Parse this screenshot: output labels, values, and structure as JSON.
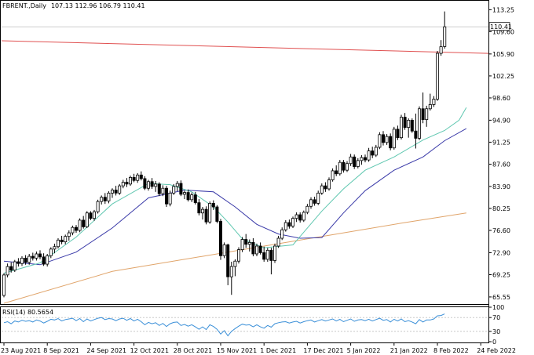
{
  "header": {
    "symbol_label": "FBRENT.,Daily",
    "ohlc_label": "107.13 112.96 106.79 110.41"
  },
  "rsi_panel": {
    "label": "RSI(14) 80.5654",
    "levels": [
      "100",
      "70",
      "30",
      "0"
    ]
  },
  "price_axis": {
    "ticks": [
      "113.25",
      "109.60",
      "105.90",
      "102.25",
      "98.60",
      "94.90",
      "91.25",
      "87.60",
      "83.90",
      "80.25",
      "76.60",
      "72.90",
      "69.25",
      "65.55"
    ],
    "current_price_label": "110.41"
  },
  "date_axis": {
    "ticks": [
      "23 Aug 2021",
      "8 Sep 2021",
      "24 Sep 2021",
      "12 Oct 2021",
      "28 Oct 2021",
      "15 Nov 2021",
      "1 Dec 2021",
      "17 Dec 2021",
      "5 Jan 2022",
      "21 Jan 2022",
      "8 Feb 2022",
      "24 Feb 2022"
    ]
  },
  "colors": {
    "bull_candle": "#ffffff",
    "bear_candle": "#000000",
    "ma_fast": "#5fc7b0",
    "ma_mid": "#3a3aa8",
    "ma_slow": "#e0a46a",
    "trendline": "#e05050",
    "rsi_line": "#3a8fd8"
  },
  "chart_data": {
    "type": "candlestick",
    "title": "FBRENT.,Daily",
    "ylim": [
      64.5,
      114.6
    ],
    "x_tick_labels": [
      "23 Aug 2021",
      "8 Sep 2021",
      "24 Sep 2021",
      "12 Oct 2021",
      "28 Oct 2021",
      "15 Nov 2021",
      "1 Dec 2021",
      "17 Dec 2021",
      "5 Jan 2022",
      "21 Jan 2022",
      "8 Feb 2022",
      "24 Feb 2022"
    ],
    "x_tick_bar_index": [
      0,
      12,
      24,
      36,
      48,
      60,
      72,
      84,
      96,
      108,
      120,
      132
    ],
    "candles": [
      [
        65.8,
        69.5,
        65.5,
        69.2
      ],
      [
        69.2,
        71.1,
        68.8,
        70.6
      ],
      [
        70.6,
        71.3,
        69.6,
        70.0
      ],
      [
        70.0,
        71.7,
        69.7,
        71.4
      ],
      [
        71.4,
        72.0,
        70.6,
        71.1
      ],
      [
        71.1,
        72.3,
        70.7,
        72.0
      ],
      [
        72.0,
        72.5,
        70.9,
        71.3
      ],
      [
        71.3,
        72.7,
        70.9,
        72.3
      ],
      [
        72.3,
        72.9,
        71.6,
        72.0
      ],
      [
        72.0,
        73.1,
        71.6,
        72.7
      ],
      [
        72.7,
        73.3,
        71.8,
        72.2
      ],
      [
        72.2,
        72.8,
        70.7,
        71.0
      ],
      [
        71.0,
        72.7,
        70.6,
        72.4
      ],
      [
        72.4,
        73.8,
        72.0,
        73.5
      ],
      [
        73.5,
        74.4,
        72.8,
        73.9
      ],
      [
        73.9,
        75.3,
        73.6,
        75.0
      ],
      [
        75.0,
        75.7,
        74.3,
        74.7
      ],
      [
        74.7,
        75.9,
        74.3,
        75.6
      ],
      [
        75.6,
        76.6,
        74.9,
        76.2
      ],
      [
        76.2,
        77.4,
        75.8,
        77.1
      ],
      [
        77.1,
        77.5,
        76.2,
        76.6
      ],
      [
        76.6,
        78.6,
        76.3,
        78.3
      ],
      [
        78.3,
        79.0,
        76.9,
        77.2
      ],
      [
        77.2,
        79.8,
        77.0,
        79.5
      ],
      [
        79.5,
        79.8,
        78.3,
        78.6
      ],
      [
        78.6,
        80.0,
        78.2,
        79.7
      ],
      [
        79.7,
        81.7,
        79.4,
        81.4
      ],
      [
        81.4,
        82.4,
        80.9,
        82.1
      ],
      [
        82.1,
        82.8,
        81.0,
        81.5
      ],
      [
        81.5,
        83.1,
        81.1,
        82.8
      ],
      [
        82.8,
        83.6,
        82.0,
        83.3
      ],
      [
        83.3,
        84.0,
        82.4,
        82.8
      ],
      [
        82.8,
        84.3,
        82.5,
        84.0
      ],
      [
        84.0,
        85.0,
        83.6,
        84.6
      ],
      [
        84.6,
        85.3,
        83.8,
        84.3
      ],
      [
        84.3,
        85.7,
        84.0,
        85.4
      ],
      [
        85.4,
        86.0,
        84.6,
        84.9
      ],
      [
        84.9,
        86.1,
        84.5,
        85.8
      ],
      [
        85.8,
        86.4,
        84.9,
        85.2
      ],
      [
        85.2,
        85.6,
        83.3,
        83.6
      ],
      [
        83.6,
        85.0,
        83.2,
        84.7
      ],
      [
        84.7,
        85.3,
        83.5,
        83.9
      ],
      [
        83.9,
        84.8,
        83.0,
        84.3
      ],
      [
        84.3,
        84.6,
        82.3,
        82.7
      ],
      [
        82.7,
        84.1,
        82.3,
        83.6
      ],
      [
        83.6,
        84.0,
        80.5,
        81.0
      ],
      [
        81.0,
        83.2,
        80.6,
        82.8
      ],
      [
        82.8,
        84.3,
        82.5,
        83.9
      ],
      [
        83.9,
        84.8,
        83.1,
        84.4
      ],
      [
        84.4,
        84.9,
        82.3,
        82.6
      ],
      [
        82.6,
        83.2,
        81.8,
        82.9
      ],
      [
        82.9,
        83.4,
        81.4,
        81.7
      ],
      [
        81.7,
        82.9,
        81.3,
        82.5
      ],
      [
        82.5,
        83.0,
        80.9,
        81.2
      ],
      [
        81.2,
        81.8,
        79.1,
        79.5
      ],
      [
        79.5,
        80.5,
        78.4,
        80.1
      ],
      [
        80.1,
        80.6,
        77.6,
        78.0
      ],
      [
        78.0,
        81.4,
        77.7,
        81.1
      ],
      [
        81.1,
        81.6,
        80.0,
        80.5
      ],
      [
        80.5,
        80.8,
        77.8,
        78.1
      ],
      [
        78.1,
        78.5,
        71.7,
        72.4
      ],
      [
        72.4,
        74.6,
        72.0,
        74.2
      ],
      [
        74.2,
        74.4,
        67.5,
        68.9
      ],
      [
        68.9,
        71.4,
        65.9,
        70.6
      ],
      [
        70.6,
        71.8,
        69.0,
        71.5
      ],
      [
        71.5,
        73.8,
        71.1,
        73.4
      ],
      [
        73.4,
        75.5,
        73.0,
        75.1
      ],
      [
        75.1,
        76.0,
        73.7,
        74.3
      ],
      [
        74.3,
        75.1,
        73.1,
        74.6
      ],
      [
        74.6,
        75.3,
        72.3,
        72.7
      ],
      [
        72.7,
        74.4,
        72.3,
        74.0
      ],
      [
        74.0,
        74.6,
        72.6,
        72.9
      ],
      [
        72.9,
        73.9,
        71.4,
        71.8
      ],
      [
        71.8,
        73.7,
        71.4,
        73.3
      ],
      [
        73.3,
        73.7,
        69.3,
        71.6
      ],
      [
        71.6,
        74.4,
        71.2,
        74.0
      ],
      [
        74.0,
        75.7,
        73.7,
        75.3
      ],
      [
        75.3,
        77.1,
        75.0,
        76.7
      ],
      [
        76.7,
        78.3,
        76.4,
        77.9
      ],
      [
        77.9,
        78.4,
        76.9,
        77.3
      ],
      [
        77.3,
        78.9,
        77.0,
        78.6
      ],
      [
        78.6,
        79.6,
        78.0,
        79.2
      ],
      [
        79.2,
        79.6,
        77.9,
        78.3
      ],
      [
        78.3,
        79.9,
        78.0,
        79.6
      ],
      [
        79.6,
        81.0,
        79.3,
        80.6
      ],
      [
        80.6,
        82.1,
        80.2,
        81.7
      ],
      [
        81.7,
        82.2,
        80.7,
        81.1
      ],
      [
        81.1,
        83.2,
        80.8,
        82.8
      ],
      [
        82.8,
        84.4,
        82.5,
        84.0
      ],
      [
        84.0,
        84.6,
        83.0,
        83.5
      ],
      [
        83.5,
        85.4,
        83.2,
        85.0
      ],
      [
        85.0,
        86.9,
        84.7,
        86.5
      ],
      [
        86.5,
        87.4,
        85.6,
        86.0
      ],
      [
        86.0,
        88.3,
        85.7,
        87.9
      ],
      [
        87.9,
        88.3,
        86.2,
        86.6
      ],
      [
        86.6,
        88.1,
        86.3,
        87.7
      ],
      [
        87.7,
        89.3,
        87.3,
        88.8
      ],
      [
        88.8,
        89.2,
        86.8,
        87.2
      ],
      [
        87.2,
        88.6,
        86.9,
        88.2
      ],
      [
        88.2,
        89.1,
        87.5,
        88.7
      ],
      [
        88.7,
        89.2,
        87.9,
        88.3
      ],
      [
        88.3,
        90.3,
        88.0,
        89.8
      ],
      [
        89.8,
        90.5,
        88.6,
        89.1
      ],
      [
        89.1,
        90.8,
        88.8,
        90.4
      ],
      [
        90.4,
        92.9,
        90.1,
        92.5
      ],
      [
        92.5,
        93.1,
        90.7,
        91.2
      ],
      [
        91.2,
        92.6,
        90.8,
        92.2
      ],
      [
        92.2,
        92.7,
        89.9,
        90.3
      ],
      [
        90.3,
        93.8,
        90.0,
        93.4
      ],
      [
        93.4,
        94.0,
        91.6,
        92.0
      ],
      [
        92.0,
        95.8,
        91.7,
        95.4
      ],
      [
        95.4,
        96.1,
        93.3,
        93.7
      ],
      [
        93.7,
        95.2,
        92.0,
        94.9
      ],
      [
        94.9,
        95.2,
        92.8,
        93.1
      ],
      [
        93.1,
        96.0,
        90.2,
        91.9
      ],
      [
        91.9,
        97.2,
        91.6,
        96.8
      ],
      [
        96.8,
        99.5,
        94.4,
        95.0
      ],
      [
        95.0,
        97.3,
        93.8,
        96.8
      ],
      [
        96.8,
        99.3,
        96.5,
        97.5
      ],
      [
        97.5,
        98.9,
        97.1,
        98.4
      ],
      [
        98.4,
        106.4,
        98.1,
        106.0
      ],
      [
        106.0,
        108.2,
        105.6,
        107.1
      ],
      [
        107.13,
        112.96,
        106.79,
        110.41
      ]
    ],
    "ma_fast": [
      [
        0,
        69.5
      ],
      [
        10,
        71.2
      ],
      [
        20,
        75.5
      ],
      [
        30,
        81.0
      ],
      [
        40,
        84.4
      ],
      [
        46,
        84.2
      ],
      [
        52,
        83.0
      ],
      [
        58,
        80.5
      ],
      [
        62,
        78.0
      ],
      [
        66,
        75.2
      ],
      [
        72,
        73.7
      ],
      [
        80,
        74.2
      ],
      [
        88,
        79.8
      ],
      [
        94,
        83.5
      ],
      [
        100,
        86.6
      ],
      [
        108,
        88.8
      ],
      [
        116,
        91.6
      ],
      [
        122,
        93.2
      ],
      [
        126,
        94.9
      ],
      [
        128,
        97.0
      ]
    ],
    "ma_mid": [
      [
        0,
        71.5
      ],
      [
        10,
        70.9
      ],
      [
        20,
        73.0
      ],
      [
        30,
        77.0
      ],
      [
        40,
        82.0
      ],
      [
        50,
        83.3
      ],
      [
        58,
        83.0
      ],
      [
        64,
        80.5
      ],
      [
        70,
        77.6
      ],
      [
        76,
        76.0
      ],
      [
        82,
        75.3
      ],
      [
        88,
        75.4
      ],
      [
        94,
        79.5
      ],
      [
        100,
        83.2
      ],
      [
        108,
        86.6
      ],
      [
        116,
        88.8
      ],
      [
        122,
        91.5
      ],
      [
        128,
        93.5
      ]
    ],
    "ma_slow": [
      [
        0,
        64.5
      ],
      [
        30,
        69.8
      ],
      [
        60,
        72.8
      ],
      [
        90,
        75.8
      ],
      [
        110,
        77.8
      ],
      [
        128,
        79.5
      ]
    ],
    "trendline": {
      "from": [
        -1,
        108.1
      ],
      "to": [
        134,
        106.0
      ]
    },
    "rsi": [
      55,
      58,
      52,
      60,
      57,
      62,
      59,
      61,
      57,
      63,
      60,
      54,
      59,
      65,
      63,
      67,
      60,
      64,
      66,
      68,
      61,
      67,
      58,
      66,
      60,
      64,
      68,
      70,
      64,
      67,
      66,
      61,
      66,
      68,
      62,
      67,
      60,
      65,
      58,
      49,
      56,
      52,
      55,
      47,
      53,
      44,
      52,
      56,
      57,
      47,
      50,
      45,
      49,
      43,
      36,
      43,
      35,
      49,
      44,
      36,
      22,
      32,
      17,
      30,
      38,
      45,
      51,
      48,
      49,
      43,
      49,
      43,
      39,
      47,
      42,
      52,
      55,
      57,
      58,
      54,
      57,
      59,
      54,
      58,
      61,
      63,
      57,
      61,
      64,
      60,
      63,
      66,
      60,
      65,
      58,
      62,
      66,
      59,
      63,
      64,
      61,
      65,
      60,
      64,
      68,
      62,
      64,
      57,
      65,
      60,
      66,
      58,
      61,
      57,
      52,
      64,
      57,
      63,
      63,
      66,
      75,
      76,
      80.5654
    ]
  }
}
